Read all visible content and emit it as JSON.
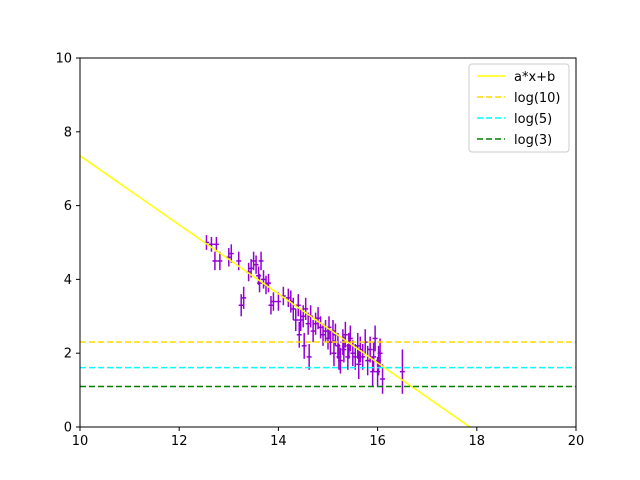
{
  "chart_data": {
    "type": "scatter",
    "xlim": [
      10,
      20
    ],
    "ylim": [
      0,
      10
    ],
    "xticks": [
      "10",
      "12",
      "14",
      "16",
      "18",
      "20"
    ],
    "yticks": [
      "0",
      "2",
      "4",
      "6",
      "8",
      "10"
    ],
    "grid": false,
    "legend_position": "top-right",
    "series": [
      {
        "name": "a*x+b",
        "kind": "line",
        "color": "#ffff00",
        "dash": "solid",
        "x": [
          10,
          17.86
        ],
        "y": [
          7.35,
          0
        ]
      },
      {
        "name": "log(10)",
        "kind": "hline",
        "color": "#ffd700",
        "dash": "dashed",
        "y": 2.3026
      },
      {
        "name": "log(5)",
        "kind": "hline",
        "color": "#00ffff",
        "dash": "dashed",
        "y": 1.6094
      },
      {
        "name": "log(3)",
        "kind": "hline",
        "color": "#008000",
        "dash": "dashed",
        "y": 1.0986
      }
    ],
    "points": {
      "color": "#9400d3",
      "x": [
        12.55,
        12.65,
        12.72,
        12.75,
        12.82,
        13.0,
        13.05,
        13.2,
        13.25,
        13.3,
        13.4,
        13.45,
        13.5,
        13.55,
        13.6,
        13.62,
        13.65,
        13.7,
        13.75,
        13.8,
        13.85,
        13.9,
        14.0,
        14.1,
        14.2,
        14.25,
        14.3,
        14.35,
        14.4,
        14.42,
        14.45,
        14.5,
        14.52,
        14.55,
        14.6,
        14.62,
        14.65,
        14.7,
        14.75,
        14.8,
        14.85,
        14.9,
        14.95,
        15.0,
        15.02,
        15.05,
        15.1,
        15.12,
        15.15,
        15.2,
        15.22,
        15.25,
        15.3,
        15.32,
        15.35,
        15.4,
        15.42,
        15.45,
        15.5,
        15.55,
        15.6,
        15.62,
        15.65,
        15.7,
        15.75,
        15.8,
        15.85,
        15.9,
        15.92,
        15.95,
        16.0,
        16.02,
        16.05,
        16.1,
        16.5
      ],
      "y": [
        5.0,
        4.95,
        4.5,
        4.95,
        4.5,
        4.6,
        4.7,
        4.5,
        3.3,
        3.5,
        4.2,
        4.3,
        4.5,
        4.4,
        4.1,
        3.9,
        4.5,
        4.0,
        3.85,
        3.9,
        3.3,
        3.4,
        3.4,
        3.55,
        3.5,
        3.4,
        3.2,
        2.9,
        3.3,
        2.5,
        2.9,
        3.0,
        2.2,
        3.2,
        2.8,
        1.9,
        3.0,
        2.6,
        2.8,
        2.95,
        2.7,
        2.5,
        2.6,
        2.4,
        2.7,
        2.3,
        2.6,
        2.0,
        2.5,
        2.2,
        1.9,
        1.8,
        2.3,
        2.1,
        2.5,
        1.9,
        2.2,
        2.4,
        2.0,
        1.9,
        2.2,
        1.7,
        2.1,
        1.9,
        2.3,
        1.8,
        2.1,
        1.5,
        1.9,
        2.4,
        1.5,
        1.8,
        2.0,
        1.3,
        1.5
      ],
      "yerr": [
        0.2,
        0.2,
        0.25,
        0.2,
        0.25,
        0.25,
        0.25,
        0.25,
        0.3,
        0.3,
        0.25,
        0.25,
        0.25,
        0.25,
        0.25,
        0.25,
        0.25,
        0.25,
        0.25,
        0.25,
        0.25,
        0.25,
        0.25,
        0.25,
        0.25,
        0.3,
        0.3,
        0.3,
        0.3,
        0.35,
        0.3,
        0.3,
        0.35,
        0.3,
        0.3,
        0.35,
        0.3,
        0.3,
        0.3,
        0.3,
        0.3,
        0.3,
        0.3,
        0.3,
        0.3,
        0.35,
        0.3,
        0.35,
        0.3,
        0.35,
        0.35,
        0.35,
        0.35,
        0.35,
        0.35,
        0.35,
        0.35,
        0.35,
        0.35,
        0.35,
        0.35,
        0.4,
        0.35,
        0.35,
        0.35,
        0.4,
        0.35,
        0.4,
        0.4,
        0.35,
        0.4,
        0.4,
        0.4,
        0.4,
        0.6
      ],
      "xerr": 0.05
    }
  }
}
